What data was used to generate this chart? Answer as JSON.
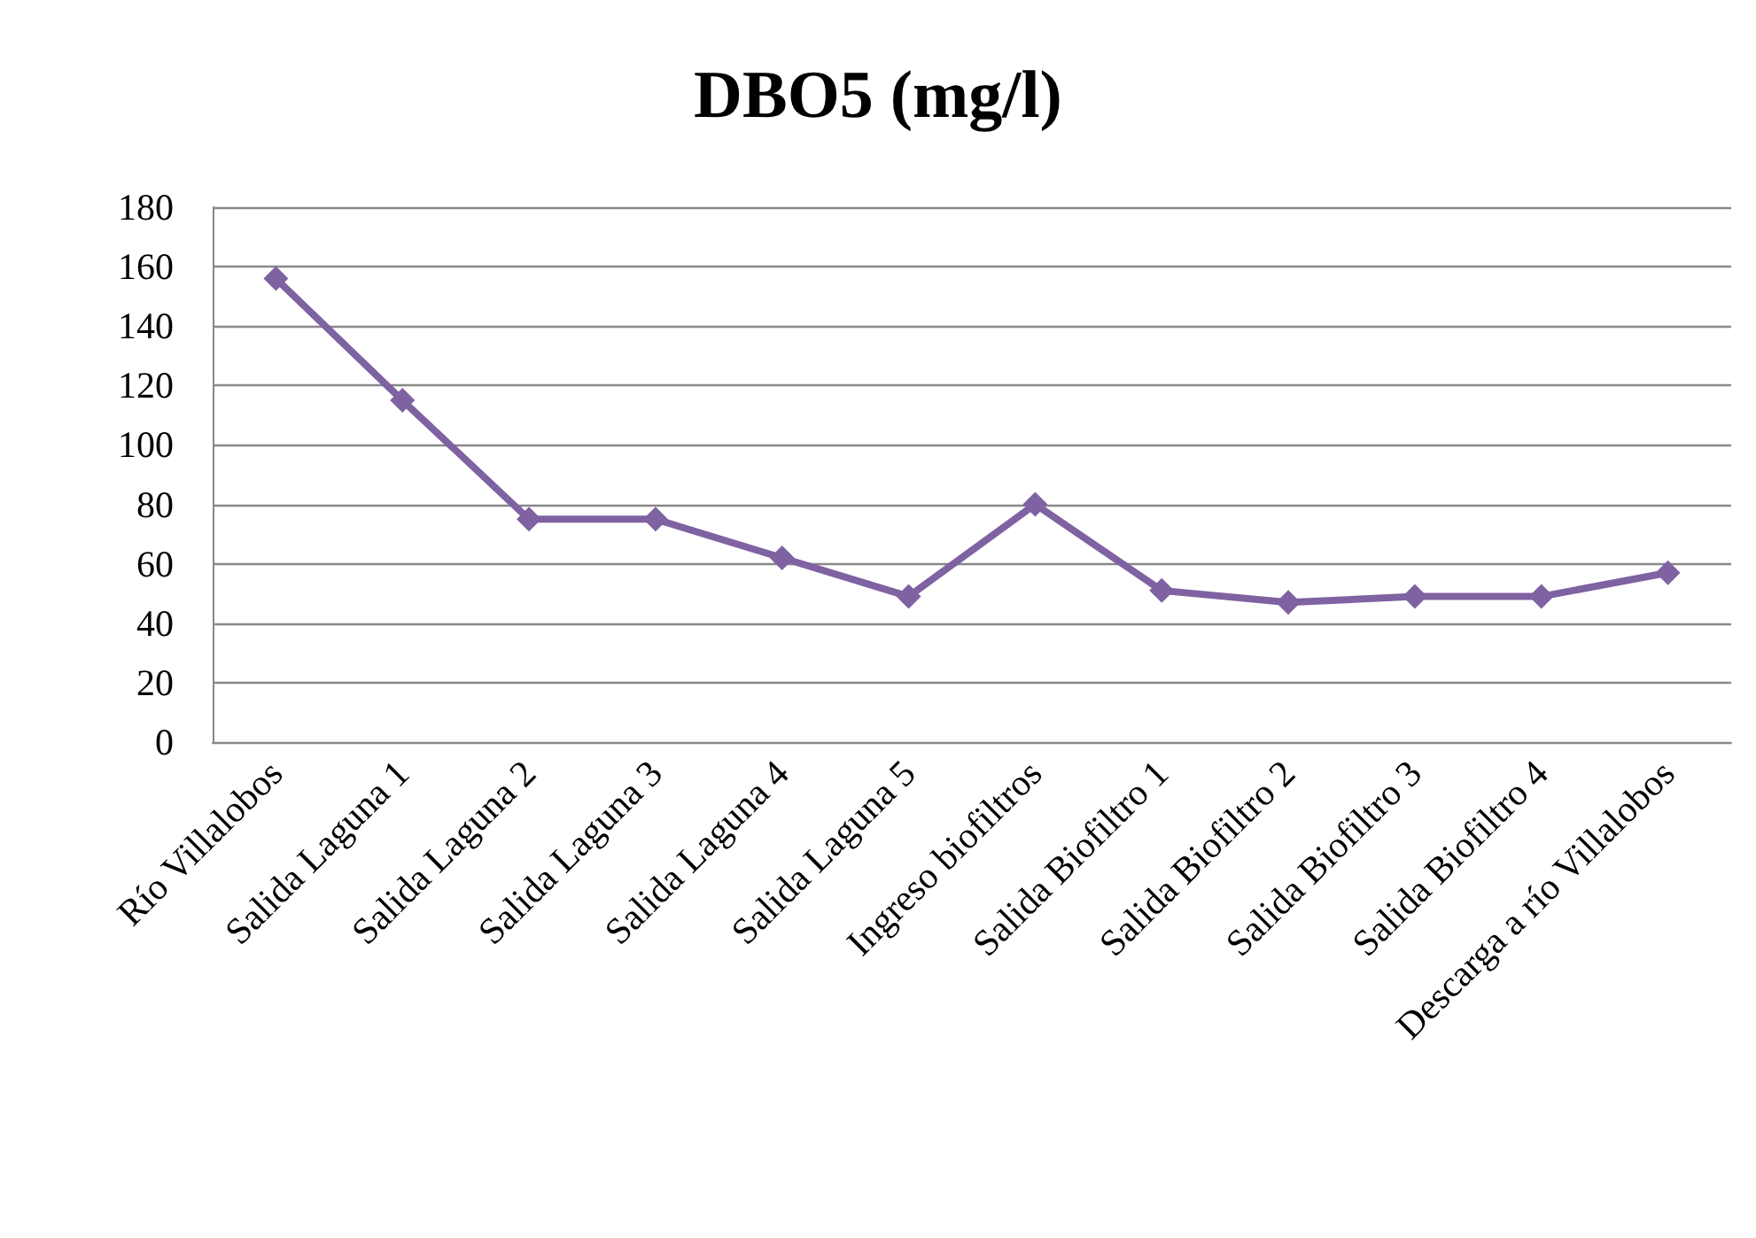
{
  "chart_data": {
    "type": "line",
    "title": "DBO5 (mg/l)",
    "categories": [
      "Río Villalobos",
      "Salida Laguna 1",
      "Salida Laguna 2",
      "Salida Laguna 3",
      "Salida Laguna 4",
      "Salida Laguna 5",
      "Ingreso biofiltros",
      "Salida Biofiltro 1",
      "Salida Biofiltro 2",
      "Salida Biofiltro 3",
      "Salida Biofiltro 4",
      "Descarga a río Villalobos"
    ],
    "series": [
      {
        "color": "#7f62a1",
        "values": [
          156,
          115,
          75,
          75,
          62,
          49,
          80,
          51,
          47,
          49,
          49,
          57
        ]
      }
    ],
    "ylim": [
      0,
      180
    ],
    "yticks": [
      0,
      20,
      40,
      60,
      80,
      100,
      120,
      140,
      160,
      180
    ],
    "grid": "y",
    "marker": "diamond",
    "line_style": "solid"
  }
}
